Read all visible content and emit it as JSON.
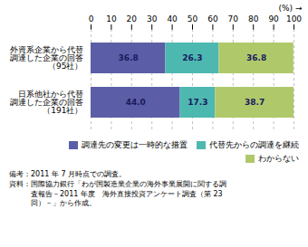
{
  "chart_data": {
    "type": "bar",
    "orientation": "horizontal",
    "stacked": true,
    "categories": [
      "外資系企業から代替\n調達した企業の回答\n（95社）",
      "日系他社から代替\n調達した企業の回答\n（191社）"
    ],
    "series": [
      {
        "name": "調達先の変更は一時的な措置",
        "color": "#5b5ea6",
        "values": [
          36.8,
          44.0
        ],
        "value_labels": [
          "36.8",
          "44.0"
        ]
      },
      {
        "name": "代替先からの調達を継続",
        "color": "#4db8b0",
        "values": [
          26.3,
          17.3
        ],
        "value_labels": [
          "26.3",
          "17.3"
        ]
      },
      {
        "name": "わからない",
        "color": "#afc96a",
        "values": [
          36.8,
          38.7
        ],
        "value_labels": [
          "36.8",
          "38.7"
        ]
      }
    ],
    "xlabel": "(%)",
    "xlim": [
      0,
      100
    ],
    "xticks": [
      0,
      10,
      20,
      30,
      40,
      50,
      60,
      70,
      80,
      90,
      100
    ],
    "grid": true,
    "data_labels": true,
    "legend": "lower right",
    "annotations": [
      "備考：2011 年 7 月時点での調査。",
      "資料：国際協力銀行「わが国製造業企業の海外事業展開に関する調",
      "　　　査報告－2011 年度　海外直接投資アンケート調査（第 23",
      "　　　回）－」から作成。"
    ]
  }
}
